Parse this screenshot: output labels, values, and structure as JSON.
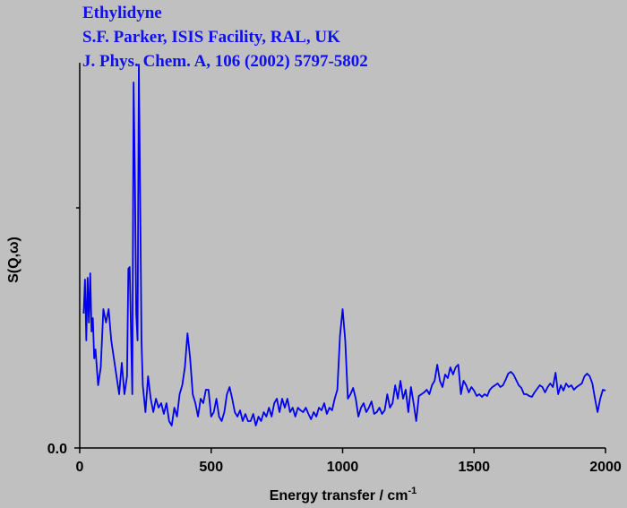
{
  "chart_data": {
    "type": "line",
    "title_lines": [
      "Ethylidyne",
      "S.F. Parker, ISIS Facility, RAL, UK",
      "J. Phys. Chem. A, 106 (2002) 5797-5802"
    ],
    "xlabel": "Energy transfer / cm",
    "xlabel_superscript": "-1",
    "ylabel": "S(Q,ω)",
    "xlim": [
      0,
      2000
    ],
    "xticks": [
      0,
      500,
      1000,
      1500,
      2000
    ],
    "ylim": [
      0,
      430
    ],
    "yticks": [
      {
        "value": 0,
        "label": "0.0"
      }
    ],
    "minor_yticks": [
      268
    ],
    "series": [
      {
        "name": "Ethylidyne",
        "color": "#0000ee",
        "x": [
          15,
          20,
          25,
          30,
          35,
          40,
          45,
          50,
          55,
          60,
          70,
          80,
          90,
          100,
          110,
          120,
          130,
          140,
          150,
          160,
          170,
          180,
          185,
          190,
          200,
          205,
          210,
          215,
          220,
          225,
          230,
          235,
          240,
          250,
          260,
          270,
          280,
          290,
          300,
          310,
          320,
          330,
          340,
          350,
          360,
          370,
          380,
          390,
          400,
          410,
          420,
          430,
          440,
          450,
          460,
          470,
          480,
          490,
          500,
          510,
          520,
          530,
          540,
          550,
          560,
          570,
          580,
          590,
          600,
          610,
          620,
          630,
          640,
          650,
          660,
          670,
          680,
          690,
          700,
          710,
          720,
          730,
          740,
          750,
          760,
          770,
          780,
          790,
          800,
          810,
          820,
          830,
          840,
          850,
          860,
          870,
          880,
          890,
          900,
          910,
          920,
          930,
          940,
          950,
          960,
          970,
          980,
          990,
          1000,
          1010,
          1020,
          1030,
          1040,
          1050,
          1060,
          1070,
          1080,
          1090,
          1100,
          1110,
          1120,
          1130,
          1140,
          1150,
          1160,
          1170,
          1180,
          1190,
          1200,
          1210,
          1220,
          1230,
          1240,
          1250,
          1260,
          1270,
          1280,
          1290,
          1300,
          1310,
          1320,
          1330,
          1340,
          1350,
          1360,
          1370,
          1380,
          1390,
          1400,
          1410,
          1420,
          1430,
          1440,
          1450,
          1460,
          1470,
          1480,
          1490,
          1500,
          1510,
          1520,
          1530,
          1540,
          1550,
          1560,
          1570,
          1580,
          1590,
          1600,
          1610,
          1620,
          1630,
          1640,
          1650,
          1660,
          1670,
          1680,
          1690,
          1700,
          1710,
          1720,
          1730,
          1740,
          1750,
          1760,
          1770,
          1780,
          1790,
          1800,
          1810,
          1820,
          1830,
          1840,
          1850,
          1860,
          1870,
          1880,
          1890,
          1900,
          1910,
          1920,
          1930,
          1940,
          1950,
          1960,
          1970,
          1980,
          1990,
          2000
        ],
        "values": [
          150,
          188,
          120,
          190,
          140,
          195,
          130,
          145,
          100,
          110,
          70,
          90,
          155,
          140,
          155,
          120,
          100,
          80,
          60,
          95,
          60,
          80,
          200,
          202,
          60,
          408,
          300,
          150,
          120,
          428,
          280,
          120,
          70,
          40,
          80,
          55,
          40,
          55,
          45,
          50,
          38,
          50,
          30,
          25,
          45,
          35,
          60,
          70,
          90,
          128,
          100,
          60,
          50,
          35,
          55,
          50,
          65,
          65,
          35,
          40,
          55,
          35,
          30,
          40,
          60,
          68,
          55,
          40,
          35,
          42,
          30,
          38,
          30,
          30,
          38,
          25,
          35,
          30,
          40,
          35,
          45,
          35,
          50,
          55,
          40,
          55,
          45,
          55,
          40,
          45,
          35,
          45,
          42,
          40,
          45,
          38,
          32,
          40,
          35,
          45,
          42,
          50,
          38,
          45,
          42,
          55,
          65,
          125,
          155,
          120,
          55,
          60,
          67,
          55,
          35,
          45,
          50,
          40,
          45,
          52,
          38,
          40,
          45,
          38,
          42,
          60,
          45,
          50,
          70,
          55,
          75,
          55,
          65,
          40,
          68,
          50,
          30,
          58,
          60,
          62,
          65,
          60,
          70,
          75,
          93,
          75,
          68,
          82,
          78,
          90,
          82,
          90,
          93,
          60,
          75,
          70,
          62,
          68,
          64,
          58,
          60,
          57,
          60,
          58,
          65,
          68,
          70,
          72,
          68,
          70,
          76,
          83,
          85,
          82,
          76,
          70,
          67,
          60,
          60,
          58,
          57,
          62,
          66,
          70,
          68,
          62,
          68,
          72,
          68,
          84,
          60,
          70,
          64,
          72,
          68,
          70,
          65,
          68,
          70,
          72,
          80,
          83,
          80,
          72,
          55,
          40,
          55,
          65,
          64
        ]
      }
    ]
  }
}
